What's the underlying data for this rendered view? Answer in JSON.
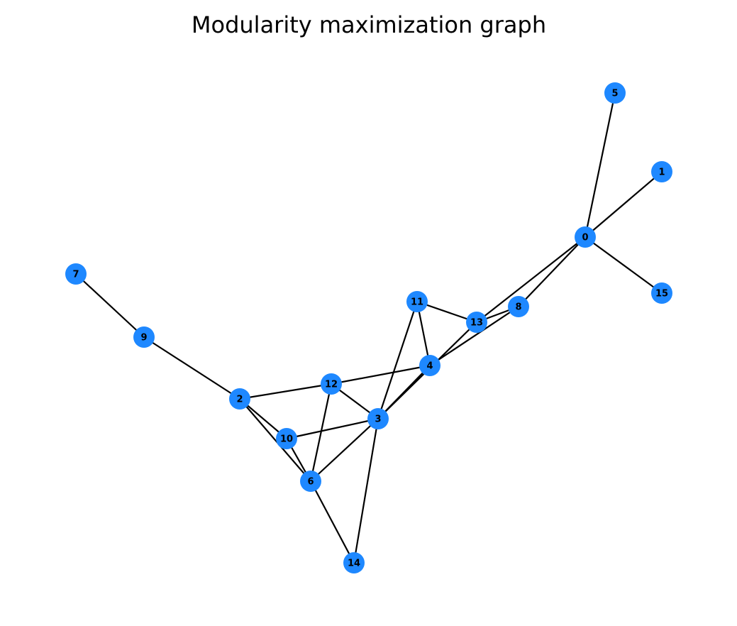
{
  "title": "Modularity maximization graph",
  "colors": {
    "node": "#1e88ff",
    "edge": "#000000",
    "label": "#000000",
    "background": "#ffffff"
  },
  "graph": {
    "nodes": [
      "0",
      "1",
      "2",
      "3",
      "4",
      "5",
      "6",
      "7",
      "8",
      "9",
      "10",
      "11",
      "12",
      "13",
      "14",
      "15"
    ],
    "edges": [
      [
        "0",
        "5"
      ],
      [
        "0",
        "1"
      ],
      [
        "0",
        "15"
      ],
      [
        "0",
        "8"
      ],
      [
        "0",
        "13"
      ],
      [
        "7",
        "9"
      ],
      [
        "9",
        "2"
      ],
      [
        "2",
        "12"
      ],
      [
        "2",
        "10"
      ],
      [
        "2",
        "6"
      ],
      [
        "12",
        "4"
      ],
      [
        "12",
        "3"
      ],
      [
        "12",
        "6"
      ],
      [
        "11",
        "13"
      ],
      [
        "11",
        "4"
      ],
      [
        "11",
        "3"
      ],
      [
        "13",
        "8"
      ],
      [
        "13",
        "3"
      ],
      [
        "8",
        "4"
      ],
      [
        "4",
        "3"
      ],
      [
        "10",
        "3"
      ],
      [
        "10",
        "6"
      ],
      [
        "3",
        "6"
      ],
      [
        "3",
        "14"
      ],
      [
        "6",
        "14"
      ]
    ]
  }
}
